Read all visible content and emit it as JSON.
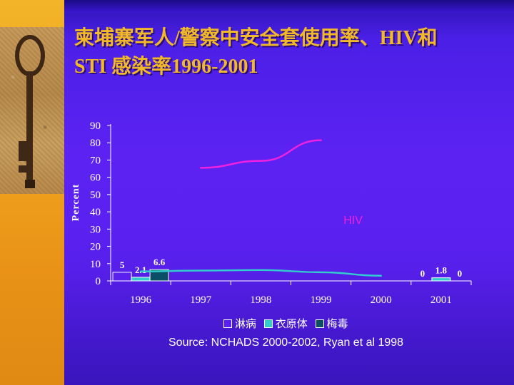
{
  "slide": {
    "title_line1": "柬埔寨军人/警察中安全套使用率、HIV和",
    "title_line2": "STI 感染率1996-2001",
    "source": "Source: NCHADS 2000-2002, Ryan et al 1998",
    "colors": {
      "background": "#5a20ee",
      "left_band": "#f0a71e",
      "title": "#f1b82a"
    }
  },
  "chart_data": {
    "type": "bar",
    "title": "",
    "xlabel": "",
    "ylabel": "Percent",
    "ylim": [
      0,
      90
    ],
    "yticks": [
      "0",
      "10",
      "20",
      "30",
      "40",
      "50",
      "60",
      "70",
      "80",
      "90"
    ],
    "categories": [
      "1996",
      "1997",
      "1998",
      "1999",
      "2000",
      "2001"
    ],
    "series": [
      {
        "name": "淋病",
        "type": "bar",
        "color": "#5a20ee",
        "values": [
          5,
          null,
          null,
          null,
          null,
          0
        ],
        "labels": [
          "5",
          "",
          "",
          "",
          "",
          "0"
        ]
      },
      {
        "name": "衣原体",
        "type": "bar",
        "color": "#33cccc",
        "values": [
          2.1,
          null,
          null,
          null,
          null,
          1.8
        ],
        "labels": [
          "2.1",
          "",
          "",
          "",
          "",
          "1.8"
        ]
      },
      {
        "name": "梅毒",
        "type": "bar",
        "color": "#0b4f66",
        "values": [
          6.6,
          null,
          null,
          null,
          null,
          0
        ],
        "labels": [
          "6.6",
          "",
          "",
          "",
          "",
          "0"
        ]
      }
    ],
    "lines": [
      {
        "label": "",
        "color": "#f022e0",
        "points": [
          [
            1997,
            65.5
          ],
          [
            1998,
            69.5
          ],
          [
            1999,
            81.5
          ]
        ]
      },
      {
        "label": "HIV",
        "color": "#33cccc",
        "points": [
          [
            1996,
            5.5
          ],
          [
            1997,
            6.0
          ],
          [
            1998,
            6.3
          ],
          [
            1999,
            5.0
          ],
          [
            2000,
            3.0
          ]
        ]
      }
    ],
    "legend": {
      "position": "bottom",
      "entries": [
        "淋病",
        "衣原体",
        "梅毒"
      ]
    },
    "grid": false
  }
}
